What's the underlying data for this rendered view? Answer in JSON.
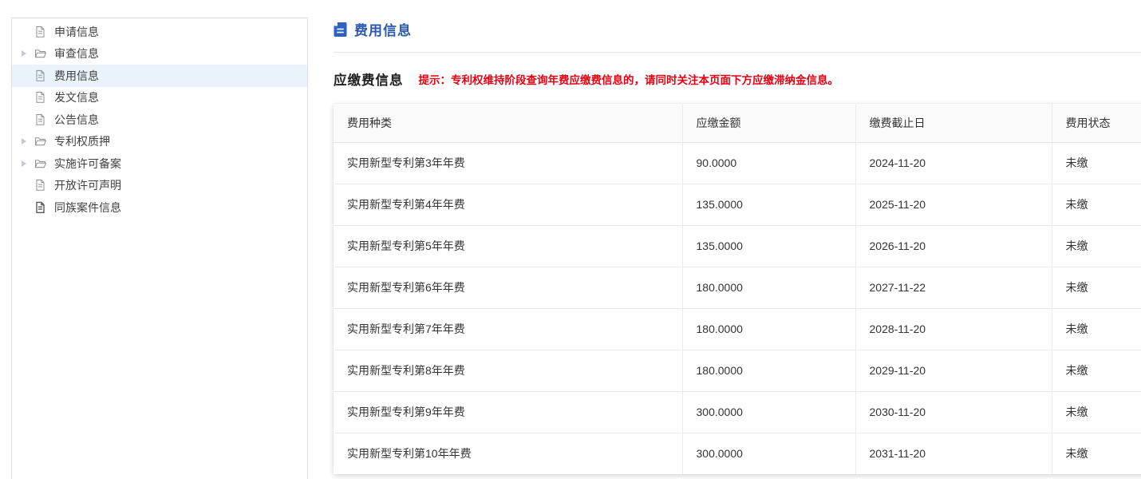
{
  "colors": {
    "title_blue": "#2e59ad",
    "title_icon_blue": "#2d63c0",
    "tip_red": "#e60012",
    "sidebar_selected_bg": "#eaf3fb",
    "table_header_bg": "#fafafa"
  },
  "sidebar": {
    "items": [
      {
        "label": "申请信息",
        "icon": "document-icon",
        "type": "leaf",
        "selected": false
      },
      {
        "label": "审查信息",
        "icon": "folder-icon",
        "type": "branch",
        "selected": false
      },
      {
        "label": "费用信息",
        "icon": "document-icon",
        "type": "leaf",
        "selected": true
      },
      {
        "label": "发文信息",
        "icon": "document-icon",
        "type": "leaf",
        "selected": false
      },
      {
        "label": "公告信息",
        "icon": "document-icon",
        "type": "leaf",
        "selected": false
      },
      {
        "label": "专利权质押",
        "icon": "folder-icon",
        "type": "branch",
        "selected": false
      },
      {
        "label": "实施许可备案",
        "icon": "folder-icon",
        "type": "branch",
        "selected": false
      },
      {
        "label": "开放许可声明",
        "icon": "document-icon",
        "type": "leaf",
        "selected": false
      },
      {
        "label": "同族案件信息",
        "icon": "document-bold-icon",
        "type": "leaf",
        "selected": false
      }
    ]
  },
  "main": {
    "page_title": "费用信息",
    "section_title": "应缴费信息",
    "tip": "提示：专利权维持阶段查询年费应缴费信息的，请同时关注本页面下方应缴滞纳金信息。",
    "table": {
      "columns": [
        "费用种类",
        "应缴金额",
        "缴费截止日",
        "费用状态"
      ],
      "rows": [
        [
          "实用新型专利第3年年费",
          "90.0000",
          "2024-11-20",
          "未缴"
        ],
        [
          "实用新型专利第4年年费",
          "135.0000",
          "2025-11-20",
          "未缴"
        ],
        [
          "实用新型专利第5年年费",
          "135.0000",
          "2026-11-20",
          "未缴"
        ],
        [
          "实用新型专利第6年年费",
          "180.0000",
          "2027-11-22",
          "未缴"
        ],
        [
          "实用新型专利第7年年费",
          "180.0000",
          "2028-11-20",
          "未缴"
        ],
        [
          "实用新型专利第8年年费",
          "180.0000",
          "2029-11-20",
          "未缴"
        ],
        [
          "实用新型专利第9年年费",
          "300.0000",
          "2030-11-20",
          "未缴"
        ],
        [
          "实用新型专利第10年年费",
          "300.0000",
          "2031-11-20",
          "未缴"
        ]
      ]
    }
  }
}
